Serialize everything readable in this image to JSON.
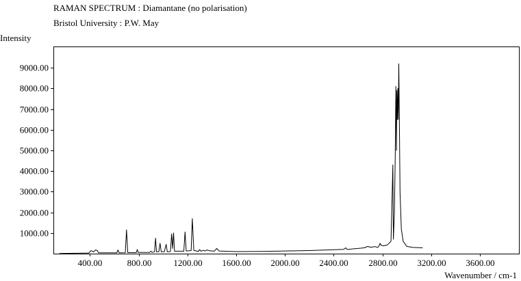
{
  "header": {
    "title": "RAMAN SPECTRUM : Diamantane (no polarisation)",
    "subtitle": "Bristol University : P.W. May"
  },
  "chart_data": {
    "type": "line",
    "title": "RAMAN SPECTRUM : Diamantane (no polarisation)",
    "subtitle": "Bristol University : P.W. May",
    "xlabel": "Wavenumber / cm-1",
    "ylabel": "Intensity",
    "xlim": [
      100,
      3920
    ],
    "ylim": [
      0,
      10000
    ],
    "grid": false,
    "line_color": "#000000",
    "xticks": [
      400,
      800,
      1200,
      1600,
      2000,
      2400,
      2800,
      3200,
      3600
    ],
    "xtick_labels": [
      "400.00",
      "800.00",
      "1200.00",
      "1600.00",
      "2000.00",
      "2400.00",
      "2800.00",
      "3200.00",
      "3600.00"
    ],
    "yticks": [
      1000,
      2000,
      3000,
      4000,
      5000,
      6000,
      7000,
      8000,
      9000
    ],
    "ytick_labels": [
      "1000.00",
      "2000.00",
      "3000.00",
      "4000.00",
      "5000.00",
      "6000.00",
      "7000.00",
      "8000.00",
      "9000.00"
    ],
    "series": [
      {
        "points": [
          [
            150,
            5
          ],
          [
            390,
            30
          ],
          [
            410,
            150
          ],
          [
            430,
            80
          ],
          [
            445,
            180
          ],
          [
            460,
            150
          ],
          [
            470,
            40
          ],
          [
            620,
            40
          ],
          [
            630,
            180
          ],
          [
            640,
            40
          ],
          [
            690,
            45
          ],
          [
            700,
            1150
          ],
          [
            710,
            50
          ],
          [
            780,
            50
          ],
          [
            788,
            200
          ],
          [
            796,
            55
          ],
          [
            890,
            60
          ],
          [
            900,
            120
          ],
          [
            910,
            60
          ],
          [
            930,
            90
          ],
          [
            938,
            750
          ],
          [
            946,
            90
          ],
          [
            965,
            90
          ],
          [
            975,
            500
          ],
          [
            985,
            90
          ],
          [
            1010,
            90
          ],
          [
            1025,
            450
          ],
          [
            1035,
            90
          ],
          [
            1060,
            100
          ],
          [
            1070,
            950
          ],
          [
            1078,
            250
          ],
          [
            1086,
            1000
          ],
          [
            1094,
            120
          ],
          [
            1170,
            120
          ],
          [
            1180,
            1050
          ],
          [
            1190,
            130
          ],
          [
            1230,
            150
          ],
          [
            1240,
            1700
          ],
          [
            1252,
            160
          ],
          [
            1290,
            110
          ],
          [
            1300,
            200
          ],
          [
            1310,
            120
          ],
          [
            1330,
            160
          ],
          [
            1345,
            130
          ],
          [
            1360,
            180
          ],
          [
            1380,
            140
          ],
          [
            1420,
            120
          ],
          [
            1440,
            250
          ],
          [
            1460,
            130
          ],
          [
            1600,
            100
          ],
          [
            1800,
            110
          ],
          [
            2000,
            130
          ],
          [
            2200,
            150
          ],
          [
            2400,
            190
          ],
          [
            2480,
            210
          ],
          [
            2500,
            280
          ],
          [
            2510,
            200
          ],
          [
            2550,
            230
          ],
          [
            2600,
            250
          ],
          [
            2650,
            280
          ],
          [
            2680,
            350
          ],
          [
            2700,
            310
          ],
          [
            2740,
            340
          ],
          [
            2760,
            300
          ],
          [
            2770,
            350
          ],
          [
            2780,
            500
          ],
          [
            2790,
            400
          ],
          [
            2810,
            380
          ],
          [
            2840,
            420
          ],
          [
            2870,
            600
          ],
          [
            2880,
            3000
          ],
          [
            2885,
            4300
          ],
          [
            2890,
            700
          ],
          [
            2898,
            2000
          ],
          [
            2905,
            4700
          ],
          [
            2910,
            8100
          ],
          [
            2915,
            5000
          ],
          [
            2918,
            7900
          ],
          [
            2922,
            6500
          ],
          [
            2926,
            8000
          ],
          [
            2930,
            6500
          ],
          [
            2934,
            9200
          ],
          [
            2938,
            7000
          ],
          [
            2944,
            3000
          ],
          [
            2955,
            1200
          ],
          [
            2970,
            600
          ],
          [
            3000,
            350
          ],
          [
            3050,
            300
          ],
          [
            3130,
            280
          ]
        ]
      }
    ]
  }
}
